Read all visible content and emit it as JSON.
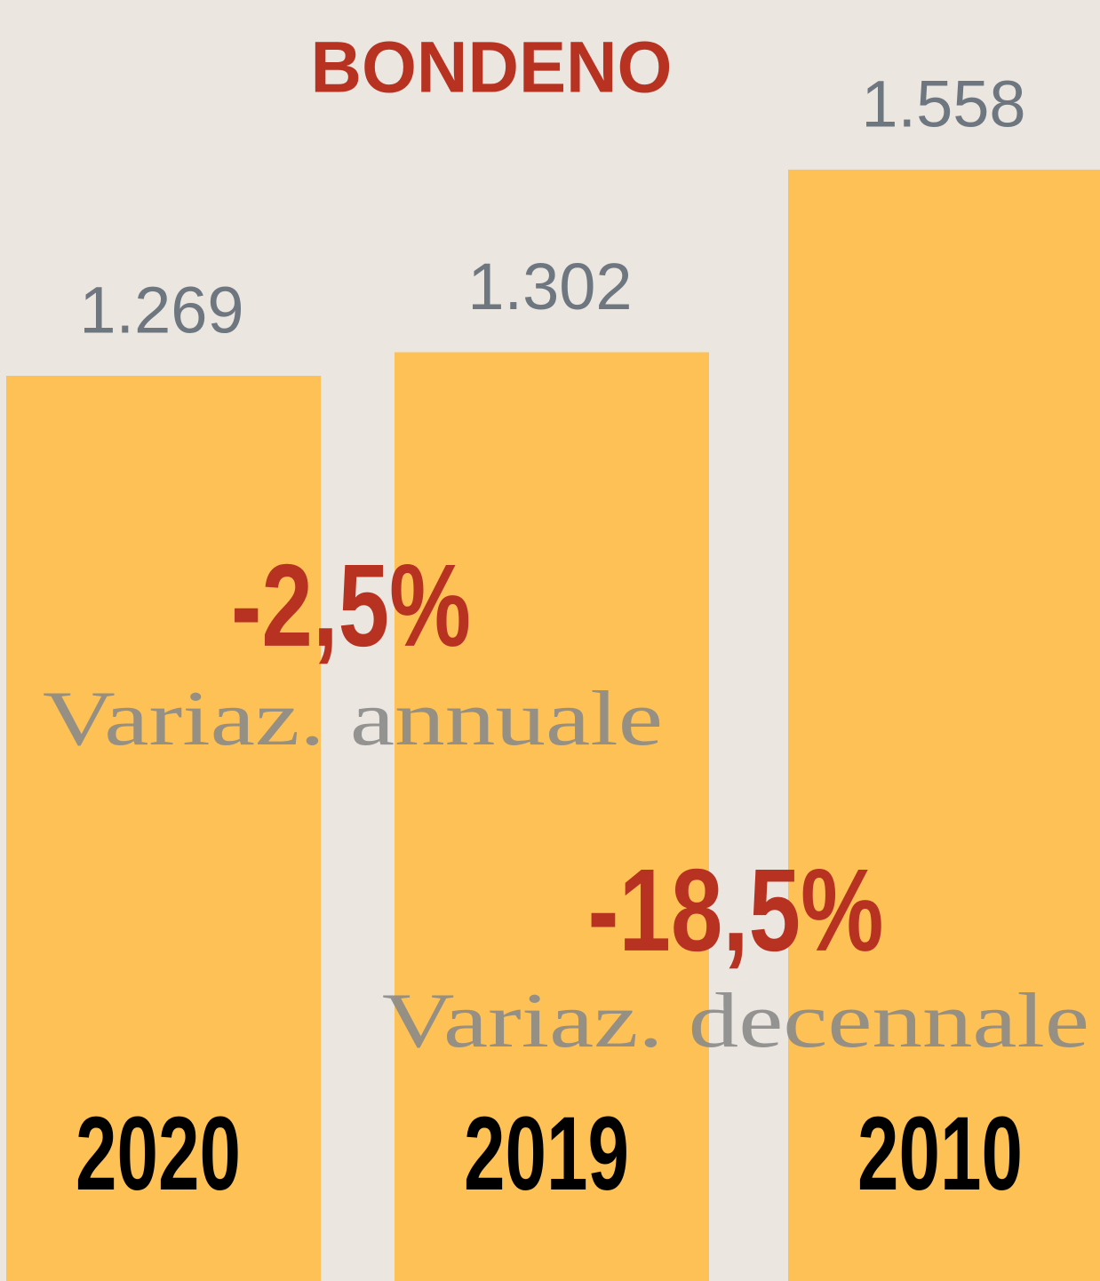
{
  "chart_data": {
    "type": "bar",
    "title": "BONDENO",
    "categories": [
      "2020",
      "2019",
      "2010"
    ],
    "values": [
      1269,
      1302,
      1558
    ],
    "value_labels": [
      "1.269",
      "1.302",
      "1.558"
    ],
    "color": "#fdc155",
    "annotations": [
      "-2,5%",
      "Variaz. annuale",
      "-18,5%",
      "Variaz. decennale"
    ]
  }
}
